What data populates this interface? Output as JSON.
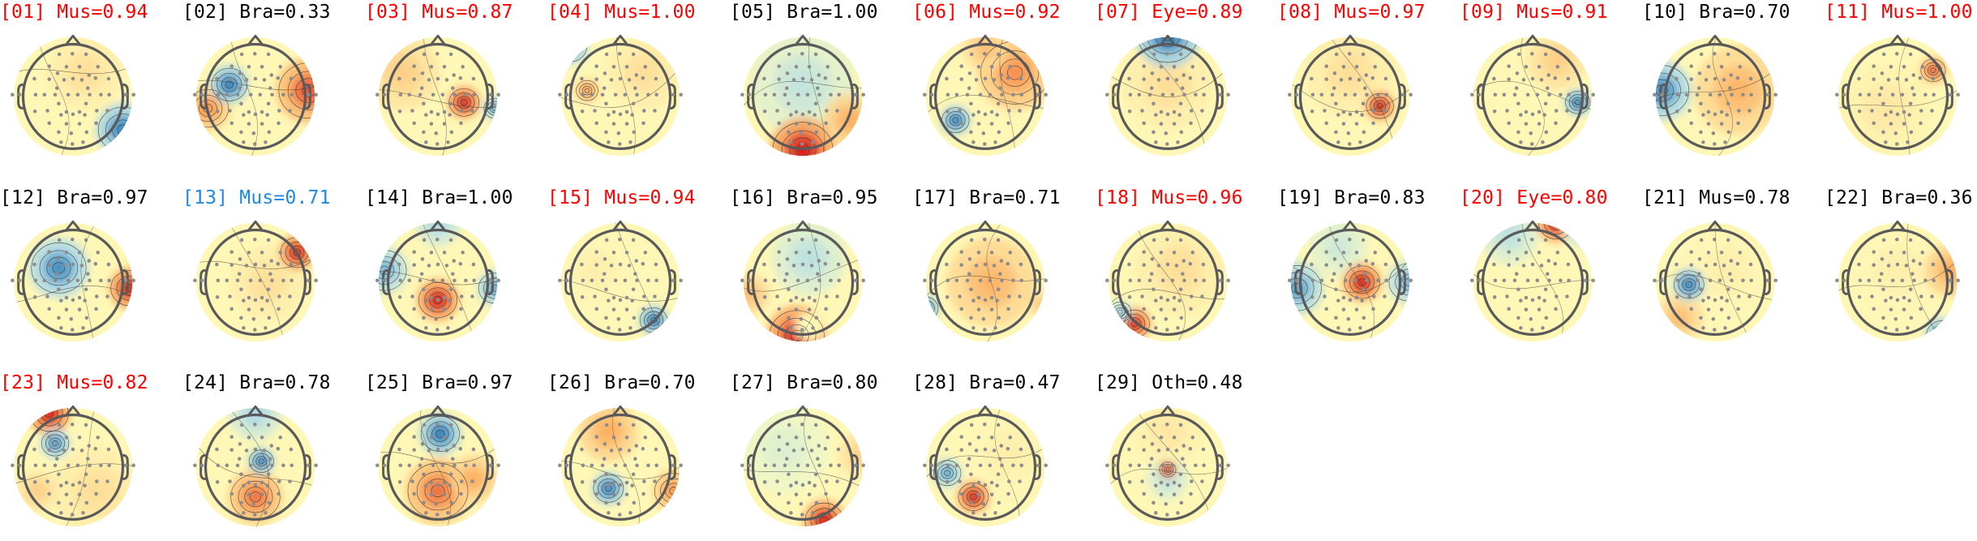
{
  "colors": {
    "artifact_label": "#ff0000",
    "muscle_uncertain_label": "#1e88e5",
    "brain_label": "#000000",
    "head_outline": "#5a5a5a",
    "sensor_dot": "#8c8c8c",
    "contour_line": "#333333",
    "colormap": [
      "#2c7bb6",
      "#abd9e9",
      "#ffffbf",
      "#fdae61",
      "#d7191c"
    ]
  },
  "components": [
    {
      "id": "[01]",
      "label": "Mus=0.94",
      "color": "red"
    },
    {
      "id": "[02]",
      "label": "Bra=0.33",
      "color": "black"
    },
    {
      "id": "[03]",
      "label": "Mus=0.87",
      "color": "red"
    },
    {
      "id": "[04]",
      "label": "Mus=1.00",
      "color": "red"
    },
    {
      "id": "[05]",
      "label": "Bra=1.00",
      "color": "black"
    },
    {
      "id": "[06]",
      "label": "Mus=0.92",
      "color": "red"
    },
    {
      "id": "[07]",
      "label": "Eye=0.89",
      "color": "red"
    },
    {
      "id": "[08]",
      "label": "Mus=0.97",
      "color": "red"
    },
    {
      "id": "[09]",
      "label": "Mus=0.91",
      "color": "red"
    },
    {
      "id": "[10]",
      "label": "Bra=0.70",
      "color": "black"
    },
    {
      "id": "[11]",
      "label": "Mus=1.00",
      "color": "red"
    },
    {
      "id": "[12]",
      "label": "Bra=0.97",
      "color": "black"
    },
    {
      "id": "[13]",
      "label": "Mus=0.71",
      "color": "blue"
    },
    {
      "id": "[14]",
      "label": "Bra=1.00",
      "color": "black"
    },
    {
      "id": "[15]",
      "label": "Mus=0.94",
      "color": "red"
    },
    {
      "id": "[16]",
      "label": "Bra=0.95",
      "color": "black"
    },
    {
      "id": "[17]",
      "label": "Bra=0.71",
      "color": "black"
    },
    {
      "id": "[18]",
      "label": "Mus=0.96",
      "color": "red"
    },
    {
      "id": "[19]",
      "label": "Bra=0.83",
      "color": "black"
    },
    {
      "id": "[20]",
      "label": "Eye=0.80",
      "color": "red"
    },
    {
      "id": "[21]",
      "label": "Mus=0.78",
      "color": "black"
    },
    {
      "id": "[22]",
      "label": "Bra=0.36",
      "color": "black"
    },
    {
      "id": "[23]",
      "label": "Mus=0.82",
      "color": "red"
    },
    {
      "id": "[24]",
      "label": "Bra=0.78",
      "color": "black"
    },
    {
      "id": "[25]",
      "label": "Bra=0.97",
      "color": "black"
    },
    {
      "id": "[26]",
      "label": "Bra=0.70",
      "color": "black"
    },
    {
      "id": "[27]",
      "label": "Bra=0.80",
      "color": "black"
    },
    {
      "id": "[28]",
      "label": "Bra=0.47",
      "color": "black"
    },
    {
      "id": "[29]",
      "label": "Oth=0.48",
      "color": "black"
    }
  ]
}
